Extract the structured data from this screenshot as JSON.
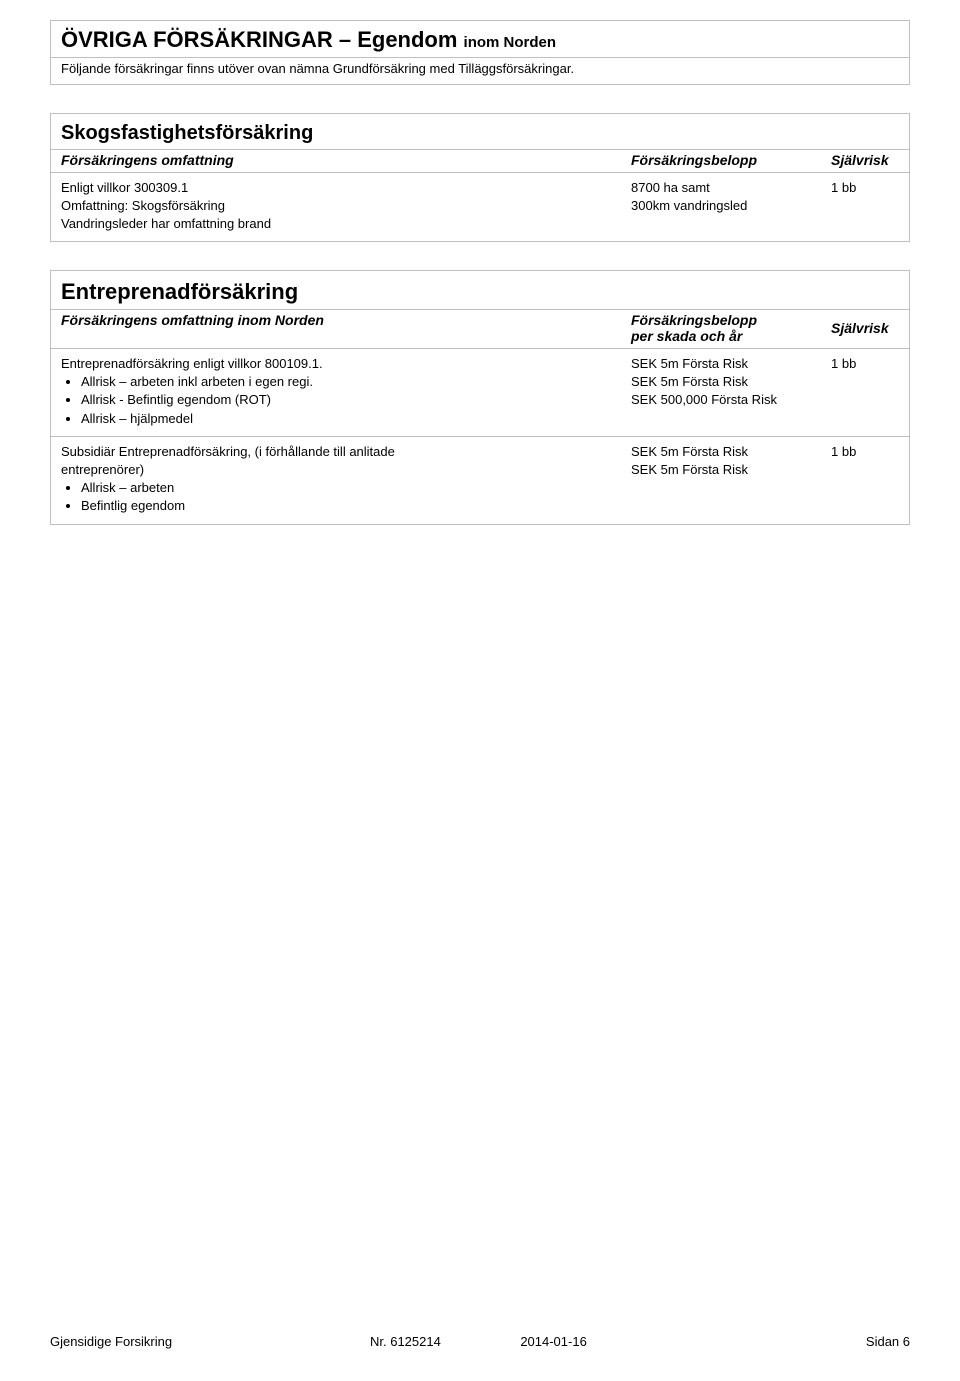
{
  "box1": {
    "title_main": "ÖVRIGA FÖRSÄKRINGAR – Egendom ",
    "title_sub": "inom Norden",
    "intro": "Följande försäkringar finns utöver ovan nämna Grundförsäkring med Tilläggsförsäkringar."
  },
  "box2": {
    "title": "Skogsfastighetsförsäkring",
    "header": {
      "col_a": "Försäkringens omfattning",
      "col_b": "Försäkringsbelopp",
      "col_c": "Självrisk"
    },
    "row1": {
      "a_line1": "Enligt villkor 300309.1",
      "a_line2": "Omfattning: Skogsförsäkring",
      "a_line3": "Vandringsleder har omfattning brand",
      "b_line1": "",
      "b_line2": "8700 ha samt",
      "b_line3": "300km vandringsled",
      "c_line1": "1 bb"
    }
  },
  "box3": {
    "title": "Entreprenadförsäkring",
    "header": {
      "col_a": "Försäkringens omfattning inom Norden",
      "col_b_line1": "Försäkringsbelopp",
      "col_b_line2": "per skada och år",
      "col_c": "Självrisk"
    },
    "row1": {
      "a_intro": "Entreprenadförsäkring enligt villkor 800109.1.",
      "a_bullets": [
        "Allrisk – arbeten inkl arbeten i egen regi.",
        "Allrisk - Befintlig egendom (ROT)",
        "Allrisk – hjälpmedel"
      ],
      "b_lines": [
        "",
        "SEK 5m Första Risk",
        "SEK 5m Första Risk",
        "SEK 500,000  Första Risk"
      ],
      "c_line1": "1 bb"
    },
    "row2": {
      "a_intro_l1": "Subsidiär Entreprenadförsäkring, (i förhållande till anlitade",
      "a_intro_l2": "entreprenörer)",
      "a_bullets": [
        "Allrisk – arbeten",
        "Befintlig egendom"
      ],
      "b_lines": [
        "",
        "",
        "SEK 5m Första Risk",
        "SEK 5m Första Risk"
      ],
      "c_line1": "1 bb"
    }
  },
  "footer": {
    "left": "Gjensidige Forsikring",
    "mid": "Nr. 6125214",
    "date": "2014-01-16",
    "right": "Sidan 6"
  }
}
